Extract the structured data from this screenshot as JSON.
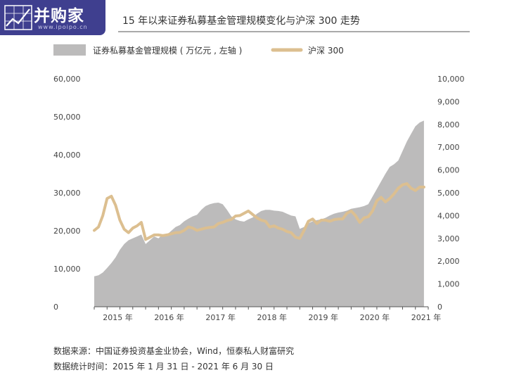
{
  "logo": {
    "brand": "并购家",
    "url": "www.ipoipo.cn"
  },
  "footer": {
    "source": "数据来源：中国证券投资基金业协会，Wind，恒泰私人财富研究",
    "period": "数据统计时间：2015 年 1 月 31 日 - 2021 年 6 月 30 日"
  },
  "chart_data": {
    "type": "area+line",
    "title": "15 年以来证券私募基金管理规模变化与沪深 300 走势",
    "legend": [
      {
        "label": "证券私募基金管理规模 ( 万亿元 , 左轴 )",
        "color": "#bcbbbb"
      },
      {
        "label": "沪深 300",
        "color": "#dcbf90"
      }
    ],
    "x_ticks": [
      "2015 年",
      "2016 年",
      "2017 年",
      "2018 年",
      "2019 年",
      "2020 年",
      "2021 年"
    ],
    "y_left": {
      "min": 0,
      "max": 60000,
      "ticks": [
        "0",
        "10,000",
        "20,000",
        "30,000",
        "40,000",
        "50,000",
        "60,000"
      ]
    },
    "y_right": {
      "min": 0,
      "max": 10000,
      "ticks": [
        "0",
        "1,000",
        "2,000",
        "3,000",
        "4,000",
        "5,000",
        "6,000",
        "7,000",
        "8,000",
        "9,000",
        "10,000"
      ]
    },
    "series": [
      {
        "name": "证券私募基金管理规模 ( 万亿元 , 左轴 )",
        "type": "area",
        "color": "#bcbbbb",
        "x": [
          "2015-01",
          "2015-02",
          "2015-03",
          "2015-04",
          "2015-05",
          "2015-06",
          "2015-07",
          "2015-08",
          "2015-09",
          "2015-10",
          "2015-11",
          "2015-12",
          "2016-01",
          "2016-02",
          "2016-03",
          "2016-04",
          "2016-05",
          "2016-06",
          "2016-07",
          "2016-08",
          "2016-09",
          "2016-10",
          "2016-11",
          "2016-12",
          "2017-01",
          "2017-02",
          "2017-03",
          "2017-04",
          "2017-05",
          "2017-06",
          "2017-07",
          "2017-08",
          "2017-09",
          "2017-10",
          "2017-11",
          "2017-12",
          "2018-01",
          "2018-02",
          "2018-03",
          "2018-04",
          "2018-05",
          "2018-06",
          "2018-07",
          "2018-08",
          "2018-09",
          "2018-10",
          "2018-11",
          "2018-12",
          "2019-01",
          "2019-02",
          "2019-03",
          "2019-04",
          "2019-05",
          "2019-06",
          "2019-07",
          "2019-08",
          "2019-09",
          "2019-10",
          "2019-11",
          "2019-12",
          "2020-01",
          "2020-02",
          "2020-03",
          "2020-04",
          "2020-05",
          "2020-06",
          "2020-07",
          "2020-08",
          "2020-09",
          "2020-10",
          "2020-11",
          "2020-12",
          "2021-01",
          "2021-02",
          "2021-03",
          "2021-04",
          "2021-05",
          "2021-06"
        ],
        "values": [
          8000,
          8300,
          9000,
          10200,
          11500,
          13000,
          15000,
          16500,
          17500,
          18000,
          18500,
          19000,
          16500,
          17500,
          18500,
          18000,
          19000,
          19000,
          20000,
          21000,
          21500,
          22500,
          23200,
          23800,
          24200,
          25500,
          26500,
          27000,
          27300,
          27400,
          27000,
          25500,
          23800,
          23000,
          22600,
          22400,
          23000,
          23500,
          24500,
          25200,
          25500,
          25500,
          25300,
          25200,
          25000,
          24500,
          24000,
          23800,
          20500,
          21000,
          22000,
          22500,
          22800,
          23000,
          23400,
          24000,
          24500,
          24800,
          25000,
          25300,
          25800,
          26000,
          26200,
          26500,
          27000,
          29000,
          31000,
          33000,
          35000,
          36800,
          37500,
          38500,
          41000,
          43500,
          45500,
          47500,
          48500,
          49000
        ]
      },
      {
        "name": "沪深 300",
        "type": "line",
        "color": "#dcbf90",
        "x": [
          "2015-01",
          "2015-02",
          "2015-03",
          "2015-04",
          "2015-05",
          "2015-06",
          "2015-07",
          "2015-08",
          "2015-09",
          "2015-10",
          "2015-11",
          "2015-12",
          "2016-01",
          "2016-02",
          "2016-03",
          "2016-04",
          "2016-05",
          "2016-06",
          "2016-07",
          "2016-08",
          "2016-09",
          "2016-10",
          "2016-11",
          "2016-12",
          "2017-01",
          "2017-02",
          "2017-03",
          "2017-04",
          "2017-05",
          "2017-06",
          "2017-07",
          "2017-08",
          "2017-09",
          "2017-10",
          "2017-11",
          "2017-12",
          "2018-01",
          "2018-02",
          "2018-03",
          "2018-04",
          "2018-05",
          "2018-06",
          "2018-07",
          "2018-08",
          "2018-09",
          "2018-10",
          "2018-11",
          "2018-12",
          "2019-01",
          "2019-02",
          "2019-03",
          "2019-04",
          "2019-05",
          "2019-06",
          "2019-07",
          "2019-08",
          "2019-09",
          "2019-10",
          "2019-11",
          "2019-12",
          "2020-01",
          "2020-02",
          "2020-03",
          "2020-04",
          "2020-05",
          "2020-06",
          "2020-07",
          "2020-08",
          "2020-09",
          "2020-10",
          "2020-11",
          "2020-12",
          "2021-01",
          "2021-02",
          "2021-03",
          "2021-04",
          "2021-05",
          "2021-06"
        ],
        "values": [
          3350,
          3500,
          4000,
          4750,
          4850,
          4450,
          3800,
          3400,
          3250,
          3450,
          3550,
          3700,
          2950,
          3050,
          3150,
          3150,
          3120,
          3150,
          3200,
          3250,
          3260,
          3350,
          3500,
          3450,
          3350,
          3400,
          3450,
          3480,
          3500,
          3650,
          3700,
          3780,
          3830,
          3980,
          4000,
          4100,
          4200,
          4050,
          3900,
          3800,
          3750,
          3500,
          3550,
          3450,
          3400,
          3300,
          3250,
          3050,
          3000,
          3350,
          3750,
          3850,
          3650,
          3800,
          3800,
          3750,
          3820,
          3850,
          3850,
          4100,
          4200,
          4000,
          3700,
          3900,
          3950,
          4200,
          4650,
          4800,
          4600,
          4750,
          4950,
          5200,
          5350,
          5400,
          5200,
          5100,
          5250,
          5250
        ]
      }
    ]
  }
}
